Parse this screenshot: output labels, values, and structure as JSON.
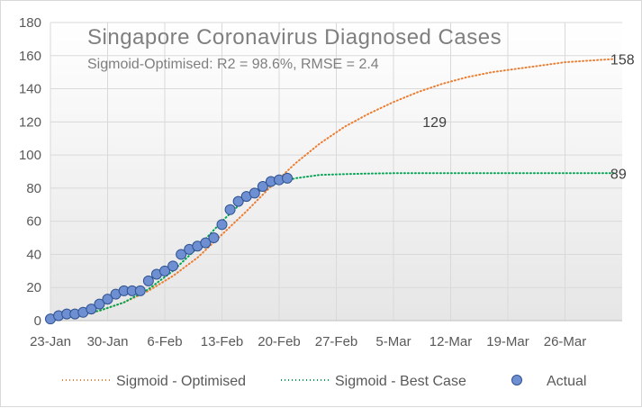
{
  "chart_data": {
    "type": "line",
    "title": "Singapore  Coronavirus  Diagnosed  Cases",
    "subtitle": "Sigmoid-Optimised:  R2 = 98.6%, RMSE = 2.4",
    "ylim": [
      0,
      180
    ],
    "y_ticks": [
      0,
      20,
      40,
      60,
      80,
      100,
      120,
      140,
      160,
      180
    ],
    "x_range_days": [
      0,
      70
    ],
    "x_tick_days": [
      0,
      7,
      14,
      21,
      28,
      35,
      42,
      49,
      56,
      63
    ],
    "x_tick_labels": [
      "23-Jan",
      "30-Jan",
      "6-Feb",
      "13-Feb",
      "20-Feb",
      "27-Feb",
      "5-Mar",
      "12-Mar",
      "19-Mar",
      "26-Mar"
    ],
    "x_unit": "days since 23-Jan",
    "series": [
      {
        "name": "Sigmoid - Optimised",
        "style": "dotted-line",
        "color": "#ed7d31",
        "x": [
          0,
          3,
          6,
          9,
          12,
          15,
          18,
          21,
          24,
          27,
          30,
          33,
          36,
          39,
          42,
          45,
          48,
          51,
          54,
          57,
          60,
          63,
          66,
          69
        ],
        "y": [
          1,
          3,
          6,
          11,
          18,
          27,
          38,
          52,
          66,
          81,
          95,
          107,
          117,
          125,
          132,
          138,
          143,
          147,
          150,
          152,
          154,
          156,
          157,
          158
        ]
      },
      {
        "name": "Sigmoid - Best Case",
        "style": "dotted-line",
        "color": "#00a651",
        "x": [
          0,
          3,
          6,
          9,
          12,
          15,
          18,
          21,
          24,
          27,
          30,
          33,
          36,
          39,
          42,
          45,
          48,
          51,
          54,
          57,
          60,
          63,
          66,
          69
        ],
        "y": [
          1,
          3,
          6,
          11,
          19,
          30,
          44,
          60,
          74,
          82,
          86,
          88,
          88.5,
          88.8,
          89,
          89,
          89,
          89,
          89,
          89,
          89,
          89,
          89,
          89
        ]
      },
      {
        "name": "Actual",
        "style": "markers",
        "color": "#4472c4",
        "x": [
          0,
          1,
          2,
          3,
          4,
          5,
          6,
          7,
          8,
          9,
          10,
          11,
          12,
          13,
          14,
          15,
          16,
          17,
          18,
          19,
          20,
          21,
          22,
          23,
          24,
          25,
          26,
          27,
          28,
          29
        ],
        "y": [
          1,
          3,
          4,
          4,
          5,
          7,
          10,
          13,
          16,
          18,
          18,
          18,
          24,
          28,
          30,
          33,
          40,
          43,
          45,
          47,
          50,
          58,
          67,
          72,
          75,
          77,
          81,
          84,
          85,
          86
        ]
      }
    ],
    "annotations": [
      {
        "text": "158",
        "x": 69,
        "y": 158
      },
      {
        "text": "129",
        "x": 46,
        "y": 129
      },
      {
        "text": "89",
        "x": 69,
        "y": 89
      }
    ],
    "legend": [
      "Sigmoid - Optimised",
      "Sigmoid - Best Case",
      "Actual"
    ],
    "legend_position": "bottom"
  }
}
